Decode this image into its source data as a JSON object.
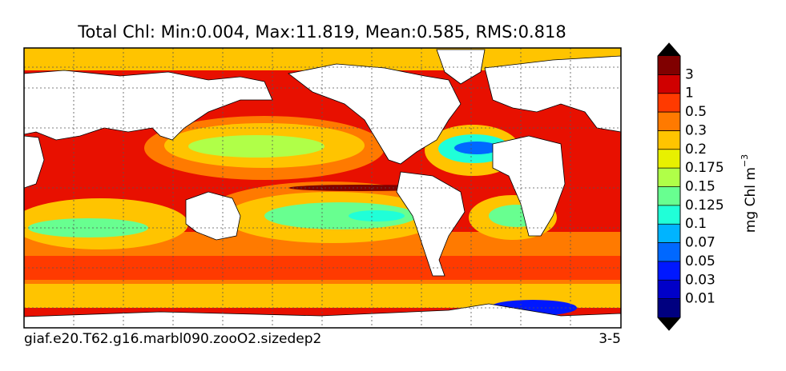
{
  "title": "Total Chl: Min:0.004, Max:11.819, Mean:0.585, RMS:0.818",
  "colorbar": {
    "ticks": [
      0.01,
      0.03,
      0.05,
      0.07,
      0.1,
      0.125,
      0.15,
      0.175,
      0.2,
      0.3,
      0.5,
      1,
      3
    ],
    "colors": [
      "#000080",
      "#0000c8",
      "#0018ff",
      "#0068ff",
      "#00b4ff",
      "#20ffd8",
      "#68ff90",
      "#b0ff48",
      "#e8f000",
      "#ffc400",
      "#ff7a00",
      "#ff3a00",
      "#d00000",
      "#800000"
    ],
    "units": "mg Chl m",
    "units_exponent": "−3"
  },
  "footer": {
    "left": "giaf.e20.T62.g16.marbl090.zooO2.sizedep2",
    "right": "3-5"
  }
}
